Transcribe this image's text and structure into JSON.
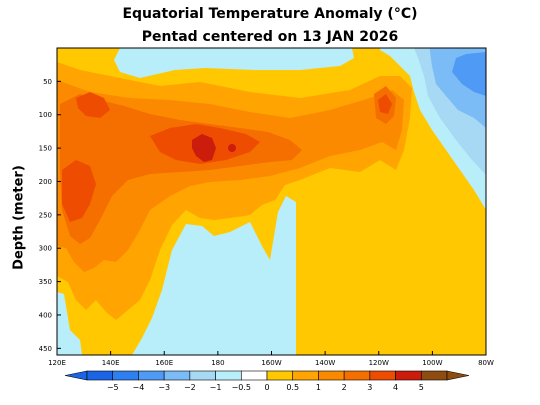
{
  "title": "Equatorial Temperature Anomaly (°C)",
  "subtitle": "Pentad centered on 13 JAN 2026",
  "colors": {
    "neg5": "#1a64e6",
    "neg4": "#2e80f0",
    "neg3": "#4f9af5",
    "neg2": "#7cbcf6",
    "neg1": "#a7d9f4",
    "neg05": "#b8eefa",
    "zero": "#ffffff",
    "pos0": "#ffc800",
    "pos05": "#ffa400",
    "pos1": "#fc8a00",
    "pos2": "#f56e00",
    "pos3": "#ee4c00",
    "pos4": "#cc1c0c",
    "pos5": "#8f4c10"
  },
  "chart_data": {
    "type": "heatmap",
    "title": "Equatorial Temperature Anomaly (°C)",
    "subtitle": "Pentad centered on 13 JAN 2026",
    "xlabel": "",
    "ylabel": "Depth (meter)",
    "x_ticks": [
      "120E",
      "140E",
      "160E",
      "180",
      "160W",
      "140W",
      "120W",
      "100W",
      "80W"
    ],
    "x_range_deg_east": [
      120,
      280
    ],
    "y_ticks": [
      "50",
      "100",
      "150",
      "200",
      "250",
      "300",
      "350",
      "400",
      "450"
    ],
    "ylim": [
      0,
      460
    ],
    "colorbar_labels": [
      "−5",
      "−4",
      "−3",
      "−2",
      "−1",
      "−0.5",
      "0",
      "0.5",
      "1",
      "2",
      "3",
      "4",
      "5"
    ],
    "colorbar_levels": [
      -5,
      -4,
      -3,
      -2,
      -1,
      -0.5,
      0,
      0.5,
      1,
      2,
      3,
      4,
      5
    ],
    "features": [
      {
        "region": "western Pacific thermocline 130E-170W, 100-200 m",
        "anomaly": "2 to 4"
      },
      {
        "region": "core near 160E-170E, 150 m",
        "anomaly": "4 to 5"
      },
      {
        "region": "western Pacific 120E-130E, 150-250 m",
        "anomaly": "3"
      },
      {
        "region": "central Pacific 165E-160W, 0-80 m",
        "anomaly": "-0.5 to 0"
      },
      {
        "region": "eastern Pacific 100W-80W, 0-180 m",
        "anomaly": "-3 to -1"
      },
      {
        "region": "deep central Pacific 150E-160W, 300-460 m",
        "anomaly": "-0.5 to 0"
      },
      {
        "region": "eastern Pacific 160W-100W, 200-460 m",
        "anomaly": "0 to 0.5"
      }
    ]
  }
}
